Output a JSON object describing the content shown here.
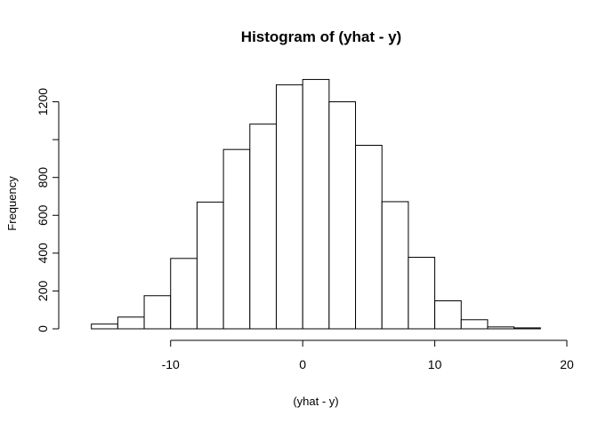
{
  "chart_data": {
    "type": "bar",
    "title": "Histogram of (yhat - y)",
    "xlabel": "(yhat - y)",
    "ylabel": "Frequency",
    "bin_edges": [
      -16,
      -14,
      -12,
      -10,
      -8,
      -6,
      -4,
      -2,
      0,
      2,
      4,
      6,
      8,
      10,
      12,
      14,
      16,
      18
    ],
    "values": [
      25,
      62,
      175,
      372,
      670,
      948,
      1082,
      1290,
      1318,
      1200,
      970,
      672,
      378,
      148,
      48,
      10,
      5
    ],
    "xlim": [
      -18,
      20
    ],
    "ylim": [
      0,
      1320
    ],
    "x_ticks": [
      -10,
      0,
      10,
      20
    ],
    "x_tick_labels": [
      "-10",
      "0",
      "10",
      "20"
    ],
    "y_ticks": [
      0,
      200,
      400,
      600,
      800,
      1000,
      1200
    ],
    "y_tick_labels": [
      "0",
      "200",
      "400",
      "600",
      "800",
      "",
      "1200"
    ],
    "bar_fill": "#ffffff",
    "bar_stroke": "#000000",
    "grid": false
  }
}
